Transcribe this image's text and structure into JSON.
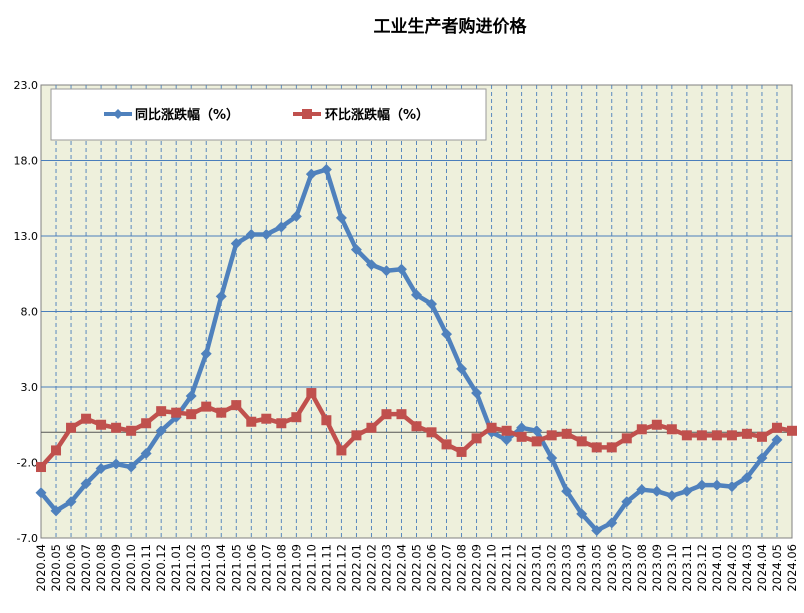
{
  "chart_data": {
    "type": "line",
    "title": "工业生产者购进价格",
    "yticks": [
      "23.0",
      "18.0",
      "13.0",
      "8.0",
      "3.0",
      "-2.0",
      "-7.0"
    ],
    "ylim": [
      -7,
      23
    ],
    "grid": true,
    "legend_position": "top-left",
    "categories": [
      "2020.04",
      "2020.05",
      "2020.06",
      "2020.07",
      "2020.08",
      "2020.09",
      "2020.10",
      "2020.11",
      "2020.12",
      "2021.01",
      "2021.02",
      "2021.03",
      "2021.04",
      "2021.05",
      "2021.06",
      "2021.07",
      "2021.08",
      "2021.09",
      "2021.10",
      "2021.11",
      "2021.12",
      "2022.01",
      "2022.02",
      "2022.03",
      "2022.04",
      "2022.05",
      "2022.06",
      "2022.07",
      "2022.08",
      "2022.09",
      "2022.10",
      "2022.11",
      "2022.12",
      "2023.01",
      "2023.02",
      "2023.03",
      "2023.04",
      "2023.05",
      "2023.06",
      "2023.07",
      "2023.08",
      "2023.09",
      "2023.10",
      "2023.11",
      "2023.12",
      "2024.01",
      "2024.02",
      "2024.03",
      "2024.04",
      "2024.05",
      "2024.06"
    ],
    "series": [
      {
        "name": "同比涨跌幅（%）",
        "color": "#4f81bd",
        "values": [
          -4.0,
          -5.2,
          -4.6,
          -3.4,
          -2.4,
          -2.1,
          -2.3,
          -1.4,
          0.1,
          1.0,
          2.4,
          5.2,
          9.0,
          12.5,
          13.1,
          13.1,
          13.6,
          14.3,
          17.1,
          17.4,
          14.2,
          12.1,
          11.1,
          10.7,
          10.8,
          9.1,
          8.5,
          6.5,
          4.2,
          2.6,
          0.0,
          -0.5,
          0.3,
          0.1,
          -1.7,
          -3.9,
          -5.4,
          -6.5,
          -6.0,
          -4.6,
          -3.8,
          -3.9,
          -4.2,
          -3.9,
          -3.5,
          -3.5,
          -3.6,
          -3.0,
          -1.7,
          -0.5,
          null
        ]
      },
      {
        "name": "环比涨跌幅（%）",
        "color": "#c0504d",
        "values": [
          -2.3,
          -1.2,
          0.3,
          0.9,
          0.5,
          0.3,
          0.1,
          0.6,
          1.4,
          1.3,
          1.2,
          1.7,
          1.3,
          1.8,
          0.7,
          0.9,
          0.6,
          1.0,
          2.6,
          0.8,
          -1.2,
          -0.2,
          0.3,
          1.2,
          1.2,
          0.4,
          0.0,
          -0.8,
          -1.3,
          -0.4,
          0.3,
          0.1,
          -0.3,
          -0.6,
          -0.2,
          -0.1,
          -0.6,
          -1.0,
          -1.0,
          -0.4,
          0.2,
          0.5,
          0.2,
          -0.2,
          -0.2,
          -0.2,
          -0.2,
          -0.1,
          -0.3,
          0.3,
          0.1
        ]
      }
    ]
  }
}
